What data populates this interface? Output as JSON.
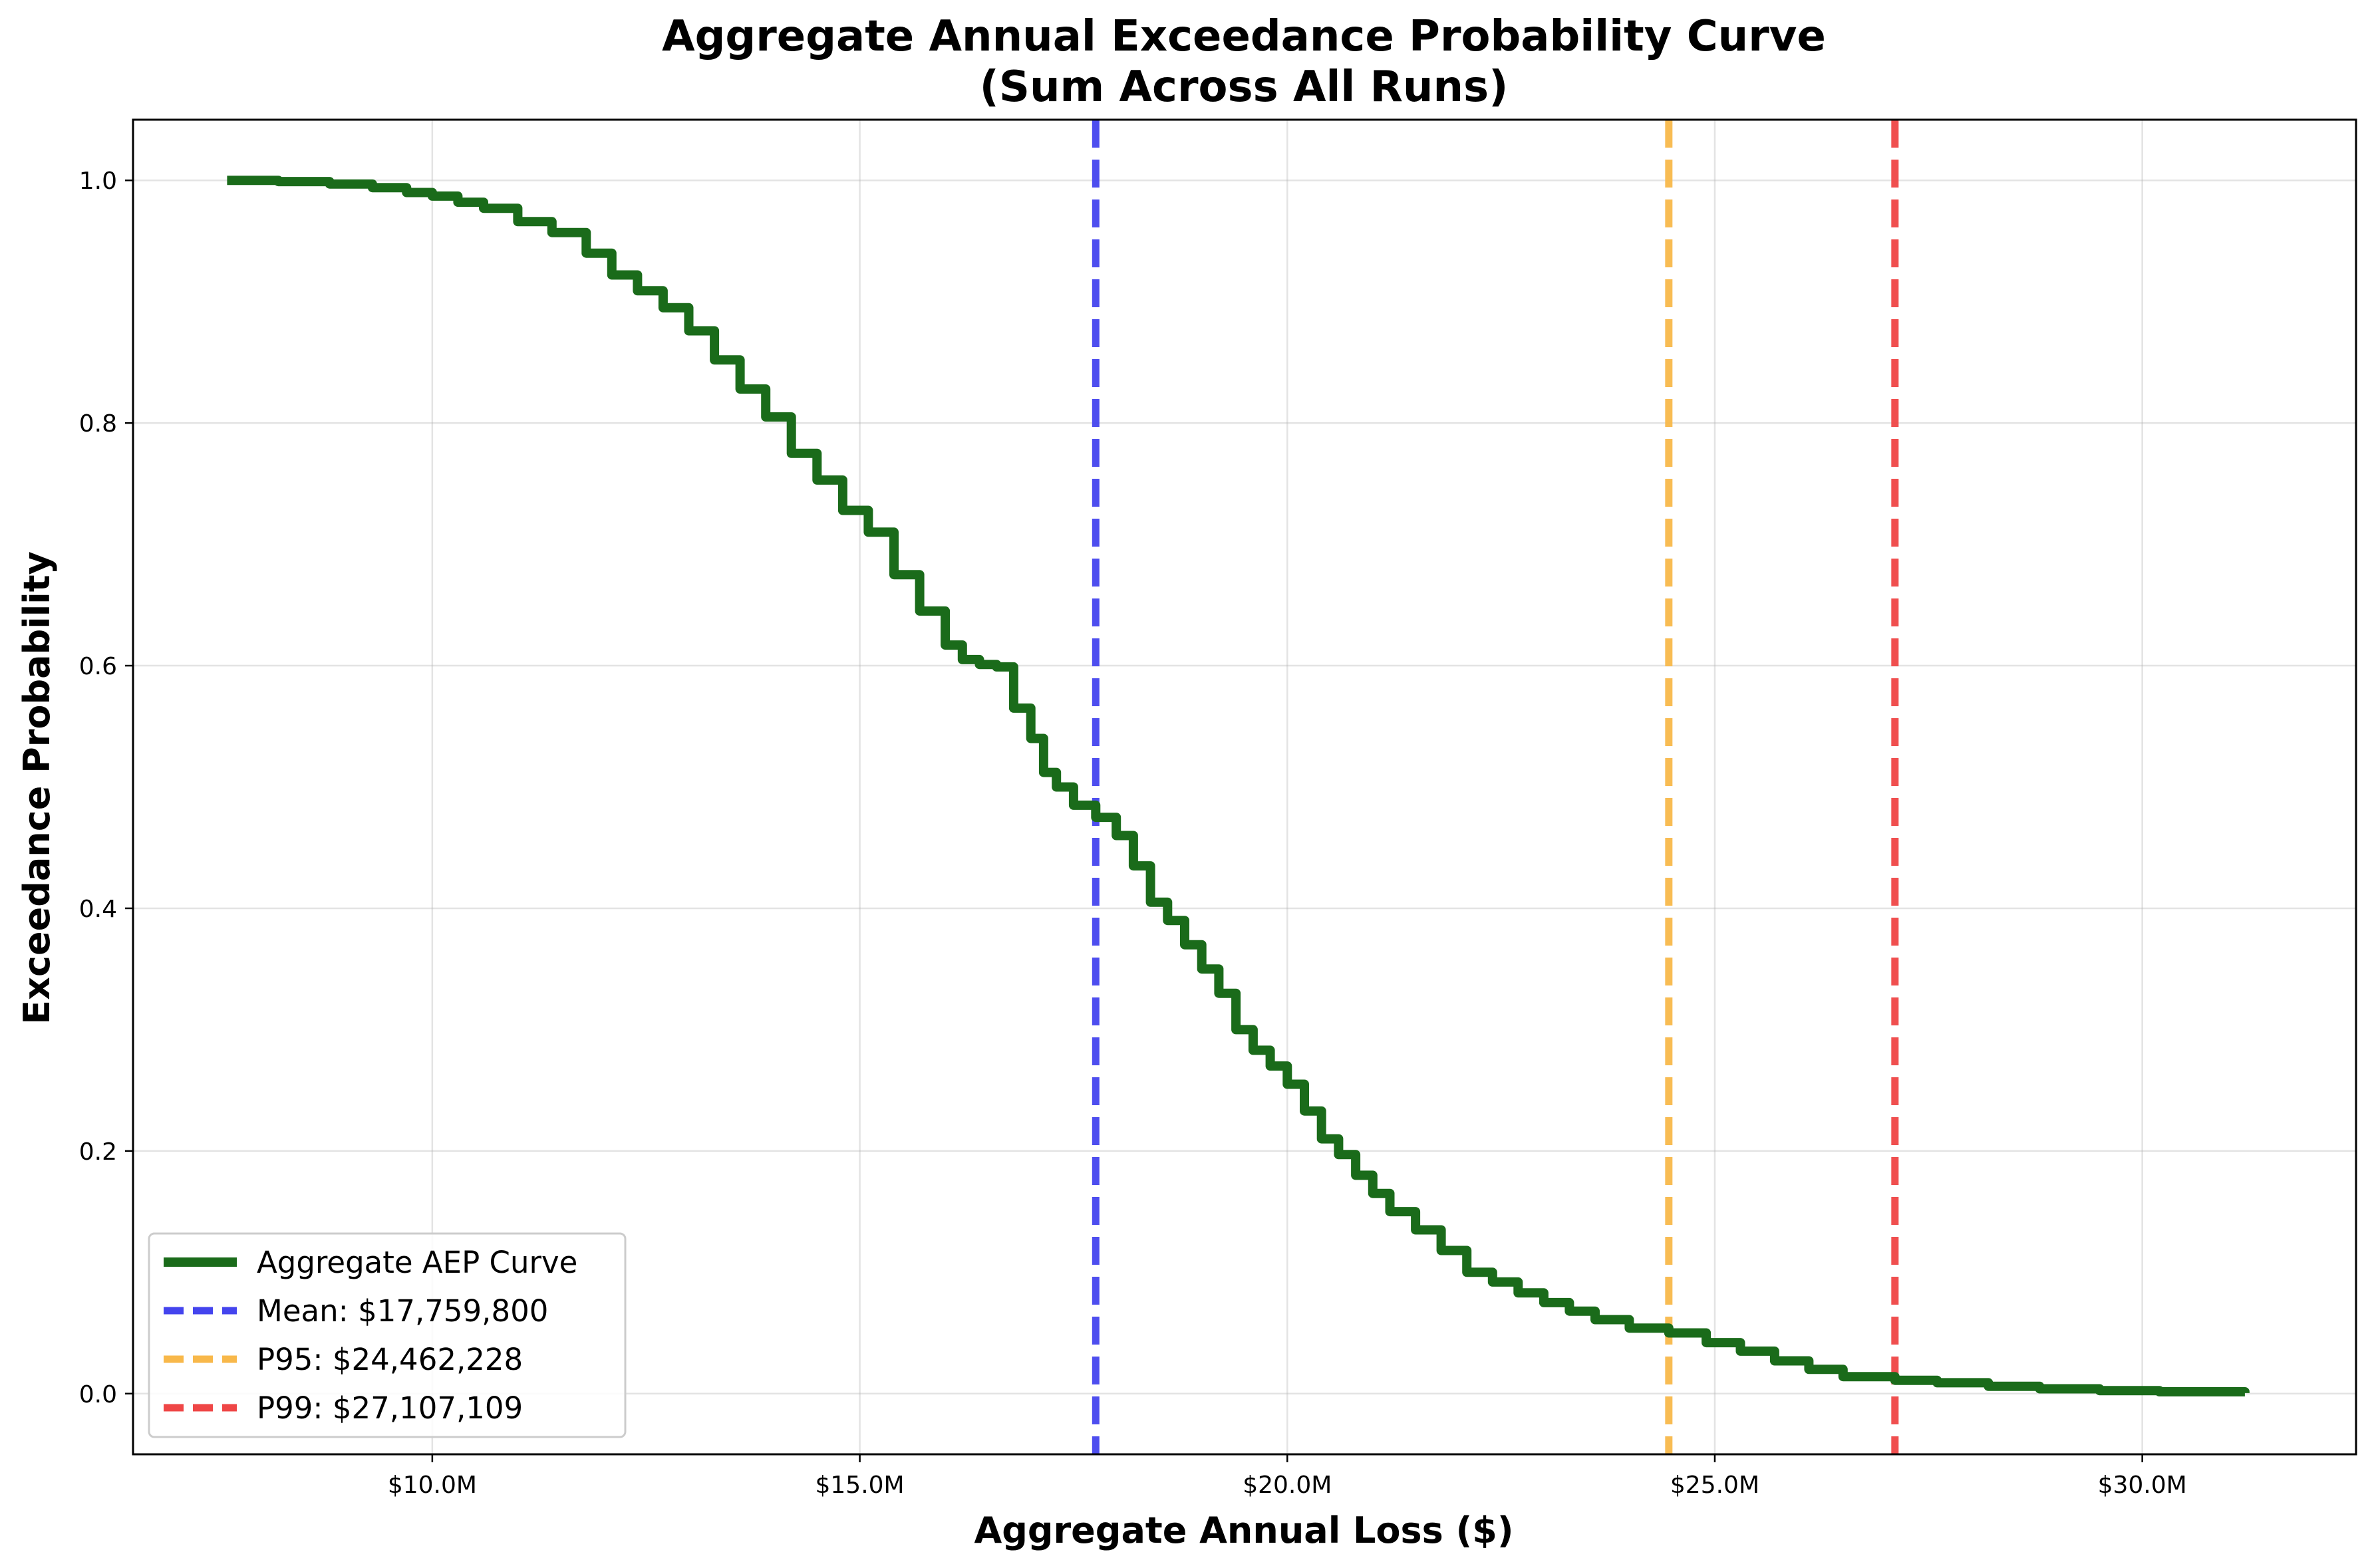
{
  "chart_data": {
    "type": "line",
    "title": "Aggregate Annual Exceedance Probability Curve",
    "subtitle": "(Sum Across All Runs)",
    "xlabel": "Aggregate Annual Loss ($)",
    "ylabel": "Exceedance Probability",
    "xlim": [
      6500000,
      32500000
    ],
    "ylim": [
      -0.05,
      1.05
    ],
    "xticks": [
      10000000,
      15000000,
      20000000,
      25000000,
      30000000
    ],
    "xtick_labels": [
      "$10.0M",
      "$15.0M",
      "$20.0M",
      "$25.0M",
      "$30.0M"
    ],
    "yticks": [
      0.0,
      0.2,
      0.4,
      0.6,
      0.8,
      1.0
    ],
    "ytick_labels": [
      "0.0",
      "0.2",
      "0.4",
      "0.6",
      "0.8",
      "1.0"
    ],
    "grid": true,
    "legend_position": "lower-left",
    "series": [
      {
        "name": "Aggregate AEP Curve",
        "color": "#1a6b1a",
        "style": "solid",
        "x": [
          7600000,
          8200000,
          8800000,
          9300000,
          9700000,
          10000000,
          10300000,
          10600000,
          11000000,
          11400000,
          11800000,
          12100000,
          12400000,
          12700000,
          13000000,
          13300000,
          13600000,
          13900000,
          14200000,
          14500000,
          14800000,
          15100000,
          15400000,
          15700000,
          16000000,
          16200000,
          16400000,
          16600000,
          16800000,
          17000000,
          17150000,
          17300000,
          17500000,
          17760000,
          18000000,
          18200000,
          18400000,
          18600000,
          18800000,
          19000000,
          19200000,
          19400000,
          19600000,
          19800000,
          20000000,
          20200000,
          20400000,
          20600000,
          20800000,
          21000000,
          21200000,
          21500000,
          21800000,
          22100000,
          22400000,
          22700000,
          23000000,
          23300000,
          23600000,
          24000000,
          24462228,
          24900000,
          25300000,
          25700000,
          26100000,
          26500000,
          27107109,
          27600000,
          28200000,
          28800000,
          29500000,
          30200000,
          31200000
        ],
        "y": [
          1.0,
          0.999,
          0.997,
          0.994,
          0.99,
          0.987,
          0.982,
          0.977,
          0.966,
          0.957,
          0.94,
          0.922,
          0.909,
          0.895,
          0.876,
          0.852,
          0.828,
          0.805,
          0.775,
          0.753,
          0.728,
          0.71,
          0.675,
          0.645,
          0.617,
          0.605,
          0.601,
          0.599,
          0.565,
          0.54,
          0.512,
          0.5,
          0.485,
          0.475,
          0.46,
          0.435,
          0.405,
          0.39,
          0.37,
          0.35,
          0.33,
          0.3,
          0.283,
          0.27,
          0.255,
          0.233,
          0.21,
          0.197,
          0.18,
          0.165,
          0.15,
          0.135,
          0.118,
          0.1,
          0.092,
          0.083,
          0.075,
          0.068,
          0.061,
          0.054,
          0.05,
          0.042,
          0.035,
          0.027,
          0.02,
          0.014,
          0.011,
          0.009,
          0.006,
          0.004,
          0.0025,
          0.0015,
          0.0005
        ]
      },
      {
        "name": "Mean: $17,759,800",
        "color": "#4444ee",
        "style": "dashed",
        "x_value": 17759800
      },
      {
        "name": "P95: $24,462,228",
        "color": "#f8b84a",
        "style": "dashed",
        "x_value": 24462228
      },
      {
        "name": "P99: $27,107,109",
        "color": "#ef4646",
        "style": "dashed",
        "x_value": 27107109
      }
    ]
  }
}
